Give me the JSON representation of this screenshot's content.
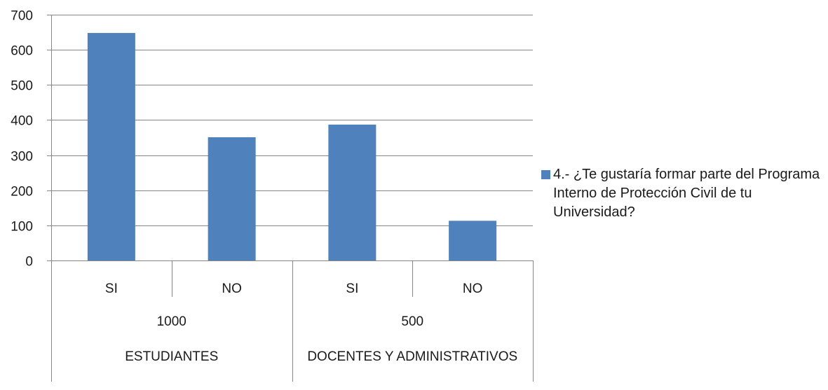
{
  "chart_data": {
    "type": "bar",
    "title": "",
    "xlabel": "",
    "ylabel": "",
    "ylim": [
      0,
      700
    ],
    "yticks": [
      0,
      100,
      200,
      300,
      400,
      500,
      600,
      700
    ],
    "grid": true,
    "legend_position": "right",
    "categories": [
      "SI",
      "NO",
      "SI",
      "NO"
    ],
    "category_levels": [
      {
        "labels": [
          "1000",
          "500"
        ],
        "span": 2
      },
      {
        "labels": [
          "ESTUDIANTES",
          "DOCENTES Y ADMINISTRATIVOS"
        ],
        "span": 2
      }
    ],
    "series": [
      {
        "name": "4.- ¿Te gustaría formar parte del Programa Interno de Protección Civil de tu Universidad?",
        "color": "#4f81bd",
        "values": [
          648,
          351,
          387,
          113
        ]
      }
    ]
  }
}
